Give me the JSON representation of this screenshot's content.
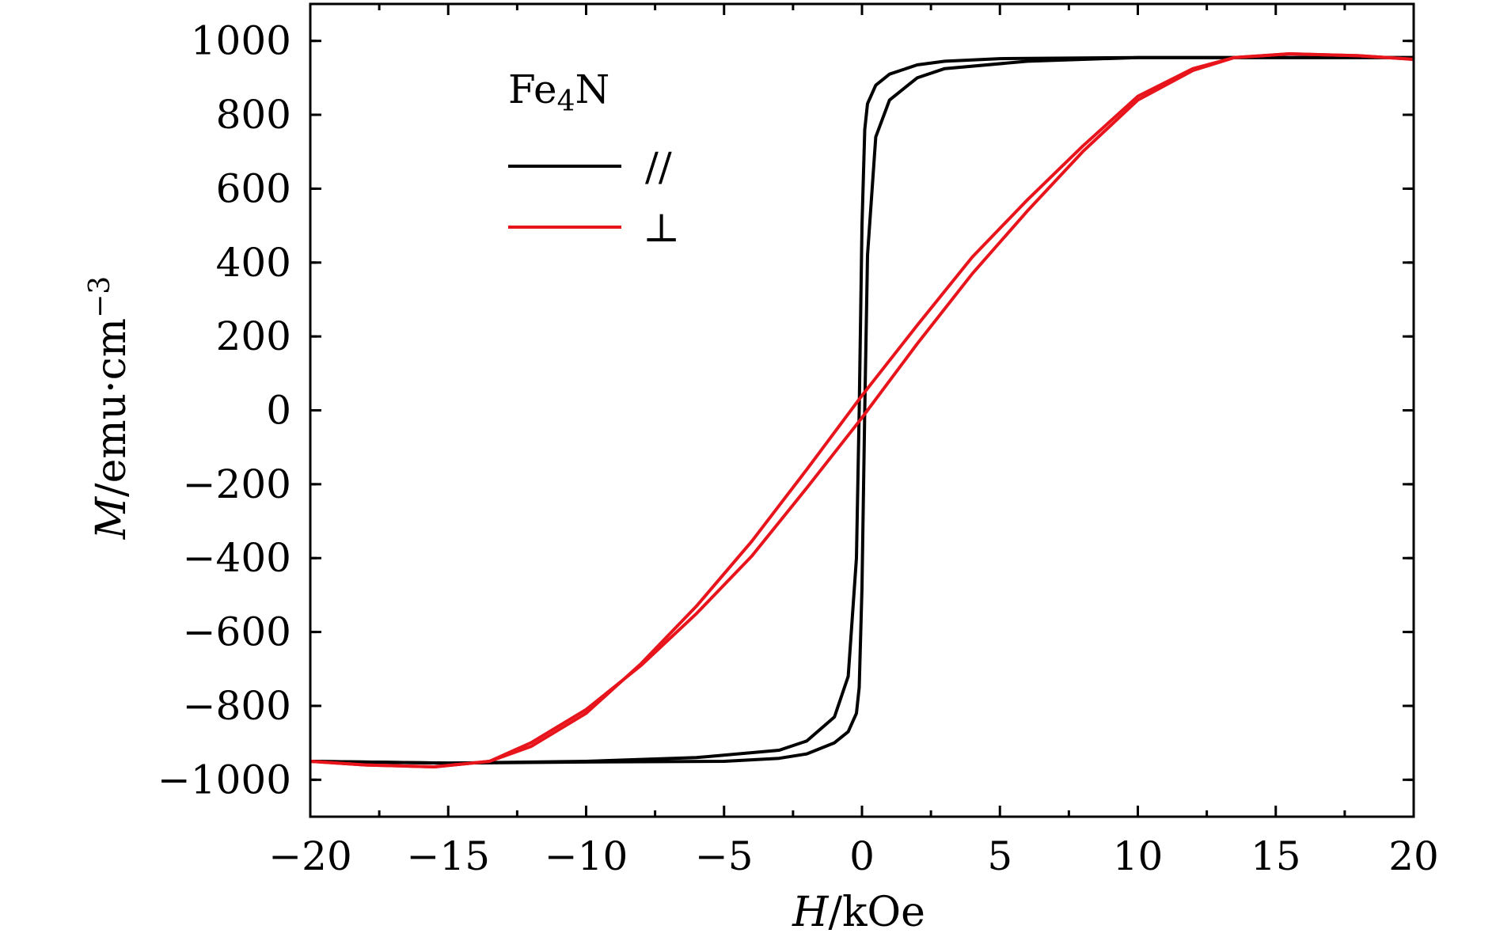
{
  "chart_data": {
    "type": "line",
    "title": "",
    "xlabel": "H/kOe",
    "xlabel_parts": {
      "symbol": "H",
      "unit": "/kOe"
    },
    "ylabel": "M/emu·cm−3",
    "ylabel_parts": {
      "symbol": "M",
      "unit": "/emu·cm",
      "exponent": "−3"
    },
    "xlim": [
      -20,
      20
    ],
    "ylim": [
      -1100,
      1100
    ],
    "xticks": [
      -20,
      -15,
      -10,
      -5,
      0,
      5,
      10,
      15,
      20
    ],
    "xtick_labels": [
      "−20",
      "−15",
      "−10",
      "−5",
      "0",
      "5",
      "10",
      "15",
      "20"
    ],
    "yticks": [
      -1000,
      -800,
      -600,
      -400,
      -200,
      0,
      200,
      400,
      600,
      800,
      1000
    ],
    "ytick_labels": [
      "−1000",
      "−800",
      "−600",
      "−400",
      "−200",
      "0",
      "200",
      "400",
      "600",
      "800",
      "1000"
    ],
    "grid": false,
    "legend": {
      "title": "Fe4N",
      "title_parts": {
        "base": "Fe",
        "sub": "4",
        "rest": "N"
      },
      "placement": "top-left",
      "entries": [
        {
          "label": "//",
          "color": "#000000"
        },
        {
          "label": "⊥",
          "color": "#e8141c"
        }
      ]
    },
    "series": [
      {
        "name": "//",
        "color": "#000000",
        "branches": [
          {
            "x": [
              -20,
              -15,
              -10,
              -6,
              -3,
              -2,
              -1,
              -0.5,
              -0.2,
              -0.1,
              0,
              0.1,
              0.2,
              0.5,
              1,
              2,
              3,
              5,
              10,
              15,
              20
            ],
            "y": [
              -950,
              -955,
              -950,
              -940,
              -920,
              -895,
              -830,
              -720,
              -400,
              0,
              500,
              760,
              830,
              880,
              910,
              935,
              945,
              952,
              955,
              955,
              955
            ]
          },
          {
            "x": [
              20,
              15,
              10,
              6,
              3,
              2,
              1,
              0.5,
              0.2,
              0.1,
              0,
              -0.1,
              -0.2,
              -0.5,
              -1,
              -2,
              -3,
              -5,
              -10,
              -15,
              -20
            ],
            "y": [
              955,
              955,
              955,
              945,
              925,
              900,
              840,
              740,
              420,
              0,
              -480,
              -750,
              -820,
              -870,
              -900,
              -930,
              -942,
              -950,
              -952,
              -955,
              -950
            ]
          }
        ]
      },
      {
        "name": "⊥",
        "color": "#e8141c",
        "branches": [
          {
            "x": [
              -20,
              -18,
              -15.5,
              -13.5,
              -12,
              -10,
              -8,
              -6,
              -4,
              -2,
              0,
              2,
              4,
              6,
              8,
              10,
              12,
              13.5,
              15.5,
              18,
              20
            ],
            "y": [
              -950,
              -960,
              -965,
              -950,
              -900,
              -810,
              -690,
              -550,
              -395,
              -210,
              -20,
              180,
              370,
              540,
              700,
              840,
              920,
              955,
              965,
              960,
              950
            ]
          },
          {
            "x": [
              20,
              18,
              15.5,
              13.5,
              12,
              10,
              8,
              6,
              4,
              2,
              0,
              -2,
              -4,
              -6,
              -8,
              -10,
              -12,
              -13.5,
              -15.5,
              -18,
              -20
            ],
            "y": [
              950,
              960,
              965,
              955,
              925,
              850,
              715,
              570,
              415,
              230,
              40,
              -160,
              -355,
              -530,
              -685,
              -820,
              -910,
              -950,
              -965,
              -960,
              -950
            ]
          }
        ]
      }
    ]
  }
}
